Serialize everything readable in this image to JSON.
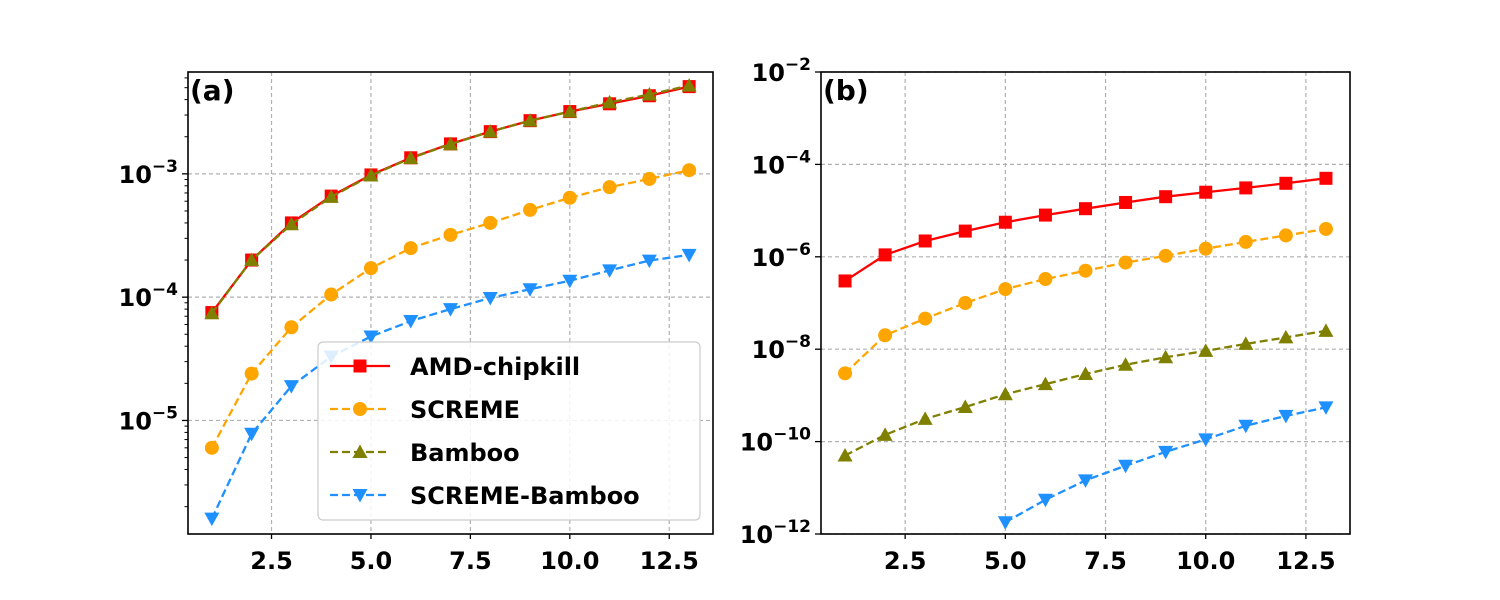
{
  "chart_data": [
    {
      "type": "line",
      "panel_label": "(a)",
      "yscale": "log",
      "xlim": [
        0.4,
        13.6
      ],
      "ylim": [
        1.2e-06,
        0.0067
      ],
      "grid": true,
      "x_ticks": [
        2.5,
        5.0,
        7.5,
        10.0,
        12.5
      ],
      "x_tick_labels": [
        "2.5",
        "5.0",
        "7.5",
        "10.0",
        "12.5"
      ],
      "y_ticks": [
        {
          "value": 0.001,
          "base": "10",
          "exp": "−3"
        },
        {
          "value": 0.0001,
          "base": "10",
          "exp": "−4"
        },
        {
          "value": 1e-05,
          "base": "10",
          "exp": "−5"
        }
      ],
      "legend": {
        "position": "lower right"
      },
      "x": [
        1,
        2,
        3,
        4,
        5,
        6,
        7,
        8,
        9,
        10,
        11,
        12,
        13
      ],
      "series": [
        {
          "name": "AMD-chipkill",
          "color": "#ff0000",
          "marker": "square",
          "linestyle": "solid",
          "values": [
            7.5e-05,
            0.0002,
            0.0004,
            0.00066,
            0.00098,
            0.00135,
            0.00175,
            0.0022,
            0.0027,
            0.0032,
            0.0037,
            0.0043,
            0.0051
          ]
        },
        {
          "name": "SCREME",
          "color": "#ffa500",
          "marker": "circle",
          "linestyle": "dashed",
          "values": [
            6e-06,
            2.4e-05,
            5.7e-05,
            0.000105,
            0.000172,
            0.00025,
            0.00032,
            0.0004,
            0.00051,
            0.00064,
            0.00078,
            0.00091,
            0.00107
          ]
        },
        {
          "name": "Bamboo",
          "color": "#808000",
          "marker": "triangle-up",
          "linestyle": "dashed",
          "values": [
            7.4e-05,
            0.0002,
            0.00039,
            0.00065,
            0.00097,
            0.00134,
            0.00174,
            0.0022,
            0.0027,
            0.0032,
            0.0038,
            0.0044,
            0.0052
          ]
        },
        {
          "name": "SCREME-Bamboo",
          "color": "#1e90ff",
          "marker": "triangle-down",
          "linestyle": "dashed",
          "values": [
            1.6e-06,
            7.8e-06,
            1.9e-05,
            3.3e-05,
            4.8e-05,
            6.4e-05,
            8e-05,
            9.85e-05,
            0.000116,
            0.000136,
            0.000165,
            0.000198,
            0.00022
          ]
        }
      ]
    },
    {
      "type": "line",
      "panel_label": "(b)",
      "yscale": "log",
      "xlim": [
        0.4,
        13.6
      ],
      "ylim": [
        1e-12,
        0.01
      ],
      "grid": true,
      "x_ticks": [
        2.5,
        5.0,
        7.5,
        10.0,
        12.5
      ],
      "x_tick_labels": [
        "2.5",
        "5.0",
        "7.5",
        "10.0",
        "12.5"
      ],
      "y_ticks": [
        {
          "value": 0.01,
          "base": "10",
          "exp": "−2"
        },
        {
          "value": 0.0001,
          "base": "10",
          "exp": "−4"
        },
        {
          "value": 1e-06,
          "base": "10",
          "exp": "−6"
        },
        {
          "value": 1e-08,
          "base": "10",
          "exp": "−8"
        },
        {
          "value": 1e-10,
          "base": "10",
          "exp": "−10"
        },
        {
          "value": 1e-12,
          "base": "10",
          "exp": "−12"
        }
      ],
      "x": [
        1,
        2,
        3,
        4,
        5,
        6,
        7,
        8,
        9,
        10,
        11,
        12,
        13
      ],
      "series": [
        {
          "name": "AMD-chipkill",
          "color": "#ff0000",
          "marker": "square",
          "linestyle": "solid",
          "values": [
            3e-07,
            1.1e-06,
            2.2e-06,
            3.6e-06,
            5.6e-06,
            8e-06,
            1.1e-05,
            1.5e-05,
            2e-05,
            2.5e-05,
            3.1e-05,
            3.9e-05,
            5e-05
          ]
        },
        {
          "name": "SCREME",
          "color": "#ffa500",
          "marker": "circle",
          "linestyle": "dashed",
          "values": [
            3e-09,
            2e-08,
            4.6e-08,
            1e-07,
            2e-07,
            3.3e-07,
            5e-07,
            7.5e-07,
            1.05e-06,
            1.5e-06,
            2.1e-06,
            2.9e-06,
            4e-06
          ]
        },
        {
          "name": "Bamboo",
          "color": "#808000",
          "marker": "triangle-up",
          "linestyle": "dashed",
          "values": [
            5e-11,
            1.4e-10,
            3.1e-10,
            5.6e-10,
            1.06e-09,
            1.75e-09,
            2.9e-09,
            4.6e-09,
            6.7e-09,
            9.2e-09,
            1.3e-08,
            1.8e-08,
            2.5e-08
          ]
        },
        {
          "name": "SCREME-Bamboo",
          "color": "#1e90ff",
          "marker": "triangle-down",
          "linestyle": "dashed",
          "values": [
            null,
            null,
            null,
            null,
            1.8e-12,
            5.5e-12,
            1.45e-11,
            3e-11,
            6e-11,
            1.12e-10,
            2.2e-10,
            3.6e-10,
            5.5e-10
          ]
        }
      ]
    }
  ]
}
